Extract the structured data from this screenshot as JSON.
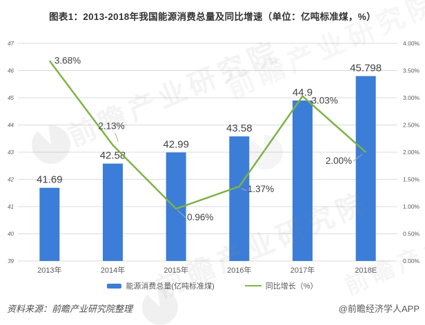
{
  "chart_data": {
    "type": "bar+line",
    "title": "图表1：2013-2018年我国能源消费总量及同比增速（单位：亿吨标准煤，%）",
    "categories": [
      "2013年",
      "2014年",
      "2015年",
      "2016年",
      "2017年",
      "2018E"
    ],
    "series": [
      {
        "name": "能源消费总量(亿吨标准煤)",
        "type": "bar",
        "axis": "left",
        "values": [
          41.69,
          42.58,
          42.99,
          43.58,
          44.9,
          45.798
        ],
        "labels": [
          "41.69",
          "42.58",
          "42.99",
          "43.58",
          "44.9",
          "45.798"
        ]
      },
      {
        "name": "同比增长（%）",
        "type": "line",
        "axis": "right",
        "values": [
          3.68,
          2.13,
          0.96,
          1.37,
          3.03,
          2.0
        ],
        "labels": [
          "3.68%",
          "2.13%",
          "0.96%",
          "1.37%",
          "3.03%",
          "2.00%"
        ]
      }
    ],
    "left_axis": {
      "min": 39,
      "max": 47,
      "step": 1,
      "ticks": [
        "47",
        "46",
        "45",
        "44",
        "43",
        "42",
        "41",
        "40",
        "39"
      ]
    },
    "right_axis": {
      "min": 0,
      "max": 4,
      "step": 0.5,
      "ticks": [
        "4.00%",
        "3.50%",
        "3.00%",
        "2.50%",
        "2.00%",
        "1.50%",
        "1.00%",
        "0.50%",
        "0.00%"
      ]
    },
    "grid": true,
    "legend_position": "bottom"
  },
  "footer": {
    "source": "资料来源：前瞻产业研究院整理",
    "brand": "@前瞻经济学人APP"
  },
  "watermark": {
    "text": "前瞻产业研究院"
  },
  "colors": {
    "bar": "#3c7dd7",
    "line": "#7db343",
    "grid": "#d9d9d9",
    "axis_text": "#595959",
    "label_text": "#404040",
    "leader": "#ababab",
    "title_text": "#333333"
  }
}
